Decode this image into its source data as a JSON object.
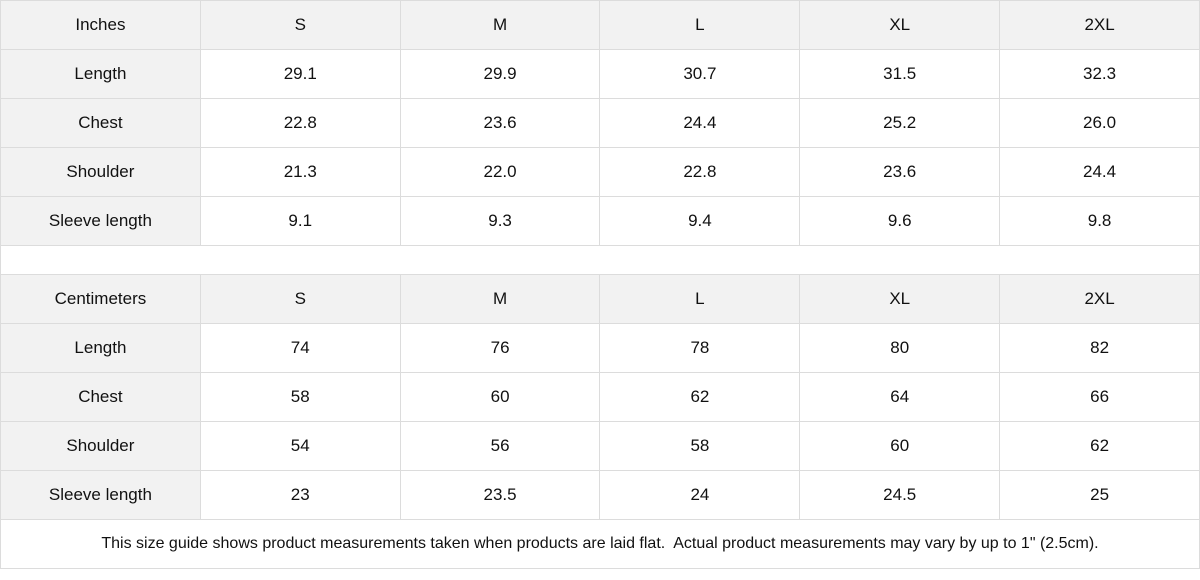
{
  "sizes": [
    "S",
    "M",
    "L",
    "XL",
    "2XL"
  ],
  "inches": {
    "unit_label": "Inches",
    "rows": [
      {
        "label": "Length",
        "values": [
          "29.1",
          "29.9",
          "30.7",
          "31.5",
          "32.3"
        ]
      },
      {
        "label": "Chest",
        "values": [
          "22.8",
          "23.6",
          "24.4",
          "25.2",
          "26.0"
        ]
      },
      {
        "label": "Shoulder",
        "values": [
          "21.3",
          "22.0",
          "22.8",
          "23.6",
          "24.4"
        ]
      },
      {
        "label": "Sleeve length",
        "values": [
          "9.1",
          "9.3",
          "9.4",
          "9.6",
          "9.8"
        ]
      }
    ]
  },
  "centimeters": {
    "unit_label": "Centimeters",
    "rows": [
      {
        "label": "Length",
        "values": [
          "74",
          "76",
          "78",
          "80",
          "82"
        ]
      },
      {
        "label": "Chest",
        "values": [
          "58",
          "60",
          "62",
          "64",
          "66"
        ]
      },
      {
        "label": "Shoulder",
        "values": [
          "54",
          "56",
          "58",
          "60",
          "62"
        ]
      },
      {
        "label": "Sleeve length",
        "values": [
          "23",
          "23.5",
          "24",
          "24.5",
          "25"
        ]
      }
    ]
  },
  "footnote": "This size guide shows product measurements taken when products are laid flat.  Actual product measurements may vary by up to 1\" (2.5cm).",
  "colors": {
    "header_bg": "#f2f2f2",
    "border": "#dcdcdc"
  }
}
